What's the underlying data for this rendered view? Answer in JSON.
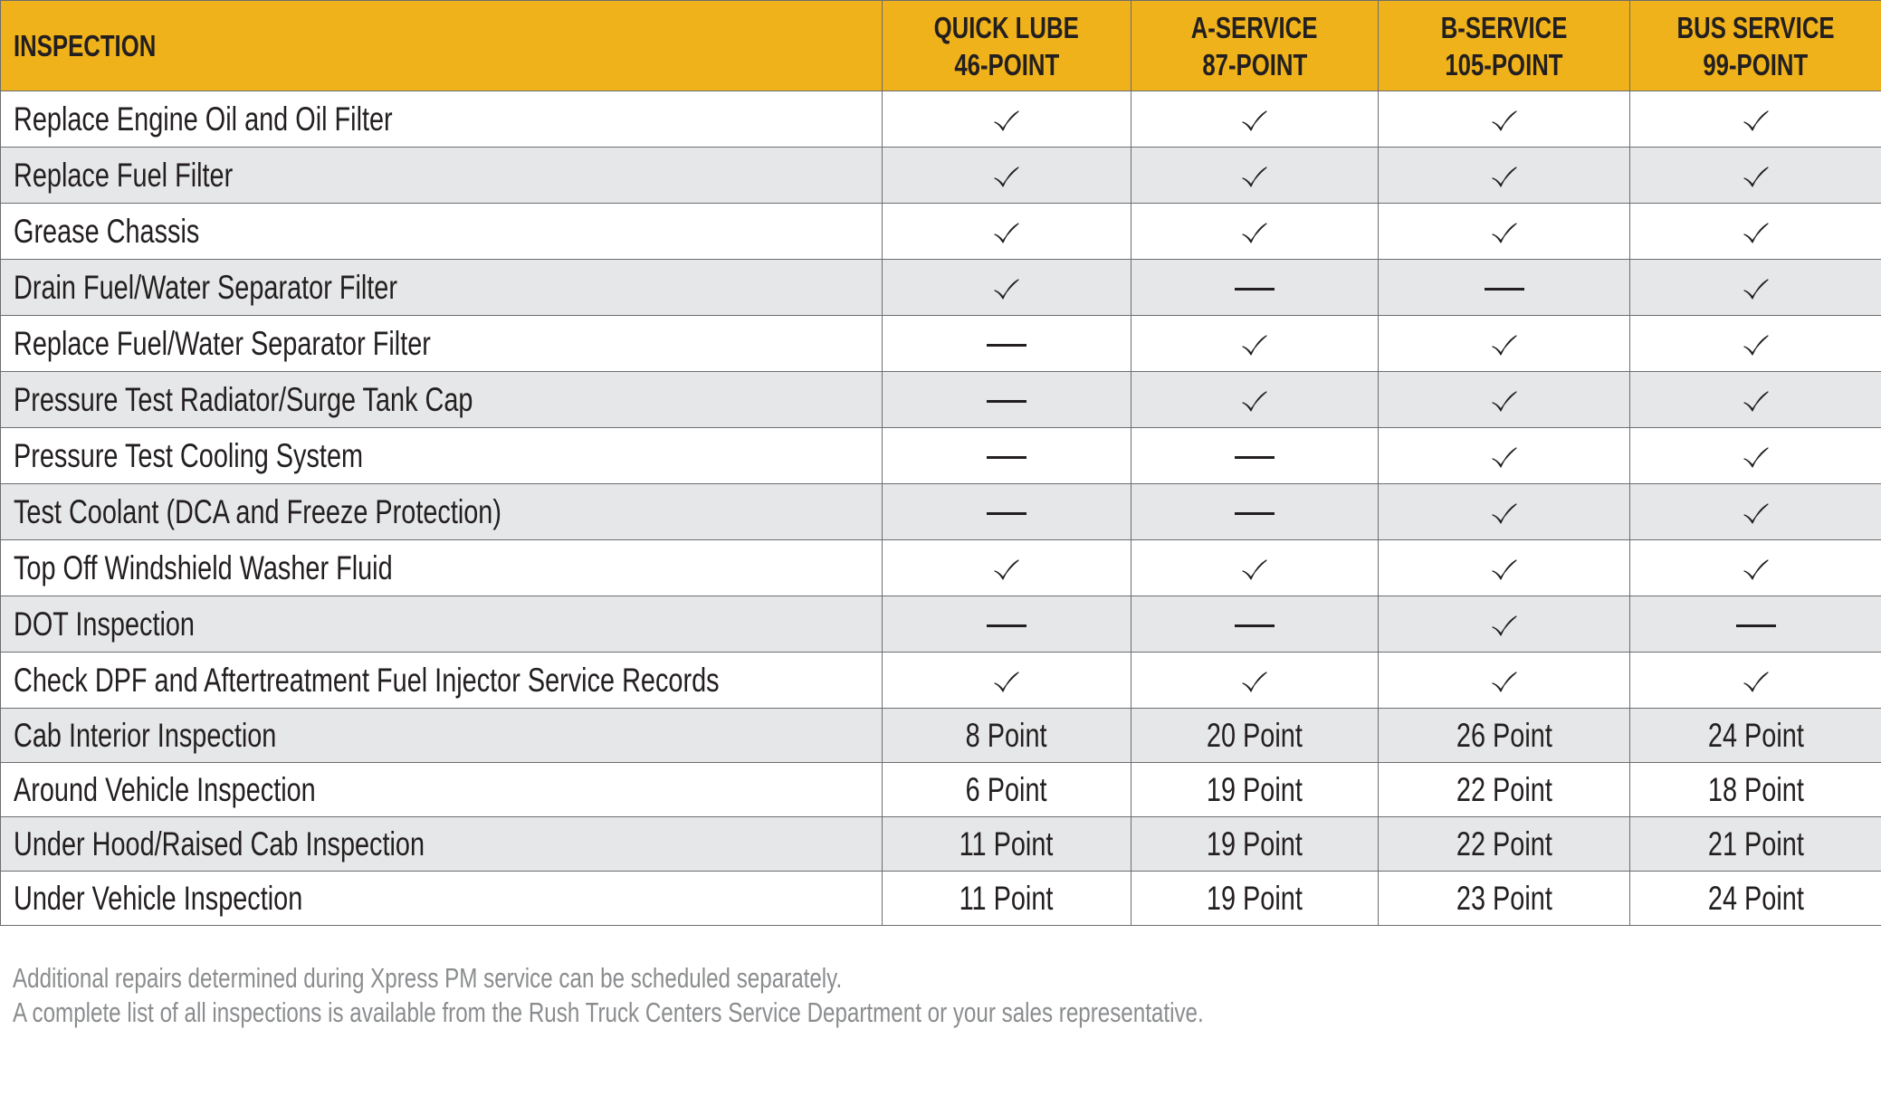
{
  "table": {
    "header": {
      "label": "INSPECTION",
      "columns": [
        {
          "line1": "QUICK LUBE",
          "line2": "46-POINT"
        },
        {
          "line1": "A-SERVICE",
          "line2": "87-POINT"
        },
        {
          "line1": "B-SERVICE",
          "line2": "105-POINT"
        },
        {
          "line1": "BUS SERVICE",
          "line2": "99-POINT"
        }
      ]
    },
    "rows": [
      {
        "label": "Replace Engine Oil and Oil Filter",
        "values": [
          "check",
          "check",
          "check",
          "check"
        ]
      },
      {
        "label": "Replace Fuel Filter",
        "values": [
          "check",
          "check",
          "check",
          "check"
        ]
      },
      {
        "label": "Grease Chassis",
        "values": [
          "check",
          "check",
          "check",
          "check"
        ]
      },
      {
        "label": "Drain Fuel/Water Separator Filter",
        "values": [
          "check",
          "dash",
          "dash",
          "check"
        ]
      },
      {
        "label": "Replace Fuel/Water Separator Filter",
        "values": [
          "dash",
          "check",
          "check",
          "check"
        ]
      },
      {
        "label": "Pressure Test Radiator/Surge Tank Cap",
        "values": [
          "dash",
          "check",
          "check",
          "check"
        ]
      },
      {
        "label": "Pressure Test Cooling System",
        "values": [
          "dash",
          "dash",
          "check",
          "check"
        ]
      },
      {
        "label": "Test Coolant (DCA and Freeze Protection)",
        "values": [
          "dash",
          "dash",
          "check",
          "check"
        ]
      },
      {
        "label": "Top Off Windshield Washer Fluid",
        "values": [
          "check",
          "check",
          "check",
          "check"
        ]
      },
      {
        "label": "DOT Inspection",
        "values": [
          "dash",
          "dash",
          "check",
          "dash"
        ]
      },
      {
        "label": "Check DPF and Aftertreatment Fuel Injector Service Records",
        "values": [
          "check",
          "check",
          "check",
          "check"
        ]
      },
      {
        "label": "Cab Interior Inspection",
        "values": [
          "8 Point",
          "20 Point",
          "26 Point",
          "24 Point"
        ]
      },
      {
        "label": "Around Vehicle Inspection",
        "values": [
          "6 Point",
          "19 Point",
          "22 Point",
          "18 Point"
        ]
      },
      {
        "label": "Under Hood/Raised Cab Inspection",
        "values": [
          "11 Point",
          "19 Point",
          "22 Point",
          "21 Point"
        ]
      },
      {
        "label": "Under Vehicle Inspection",
        "values": [
          "11 Point",
          "19 Point",
          "23 Point",
          "24 Point"
        ]
      }
    ]
  },
  "footnotes": [
    "Additional repairs determined during Xpress PM service can be scheduled separately.",
    "A complete list of all inspections is available from the Rush Truck Centers Service Department or your sales representative."
  ],
  "colors": {
    "header_background": "#efb21a",
    "shaded_row": "#e6e7e8",
    "border": "#6d6e71",
    "text": "#231f20",
    "footnote_text": "#8a8c8e"
  },
  "icons": {
    "check": "check-icon",
    "dash": "dash-icon"
  }
}
